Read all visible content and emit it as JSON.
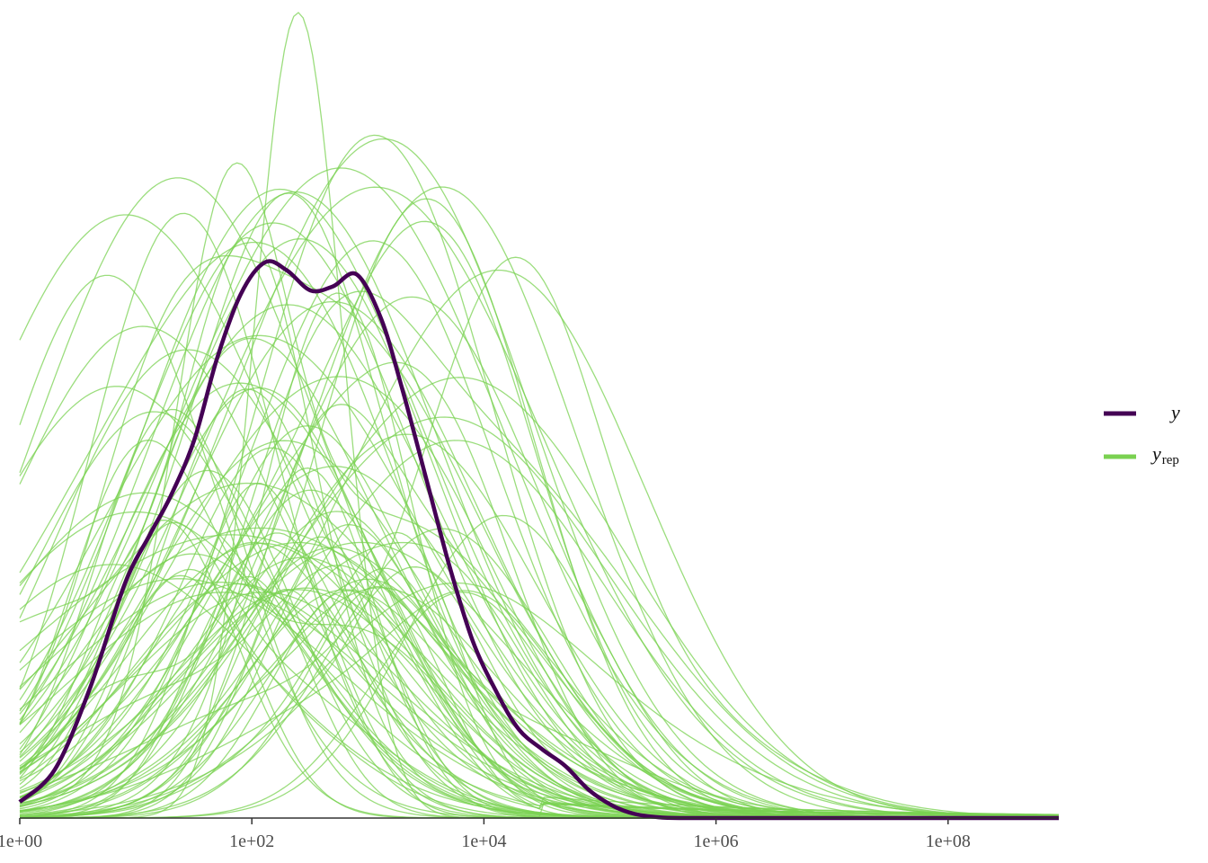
{
  "chart_data": {
    "type": "line",
    "title": "",
    "xlabel": "",
    "ylabel": "",
    "x_scale": "log10",
    "xlim": [
      1,
      900000000
    ],
    "ylim": [
      0,
      1.0
    ],
    "y_ticks_shown": false,
    "grid": false,
    "legend_placement": "right",
    "x_ticks": [
      {
        "value": 1,
        "label": "1e+00"
      },
      {
        "value": 100,
        "label": "1e+02"
      },
      {
        "value": 10000,
        "label": "1e+04"
      },
      {
        "value": 1000000,
        "label": "1e+06"
      },
      {
        "value": 100000000,
        "label": "1e+08"
      }
    ],
    "colors": {
      "y": "#440154",
      "yrep": "#7AD151"
    },
    "legend": [
      {
        "key": "y",
        "label": "y",
        "sub": "",
        "color": "#440154"
      },
      {
        "key": "yrep",
        "label": "y",
        "sub": "rep",
        "color": "#7AD151"
      }
    ],
    "series": [
      {
        "name": "y",
        "x": [
          1,
          2,
          4,
          8,
          13,
          20,
          32,
          50,
          80,
          130,
          200,
          320,
          500,
          800,
          1300,
          2000,
          3200,
          5000,
          8000,
          13000,
          20000,
          32000,
          50000,
          80000,
          130000,
          200000,
          320000,
          500000,
          1000000,
          10000000,
          900000000
        ],
        "y": [
          0.02,
          0.06,
          0.16,
          0.29,
          0.35,
          0.4,
          0.47,
          0.57,
          0.65,
          0.69,
          0.68,
          0.655,
          0.66,
          0.675,
          0.62,
          0.53,
          0.42,
          0.315,
          0.22,
          0.155,
          0.11,
          0.085,
          0.065,
          0.035,
          0.015,
          0.005,
          0.001,
          0.0,
          0.0,
          0.0,
          0.0
        ]
      }
    ],
    "yrep_envelope": {
      "draws": 100,
      "peak_x_range": [
        5,
        20000
      ],
      "peak_y_range": [
        0.28,
        1.0
      ],
      "log_sd_range": [
        0.45,
        1.5
      ],
      "max_peak_x": 250,
      "max_peak_y": 1.0
    }
  }
}
